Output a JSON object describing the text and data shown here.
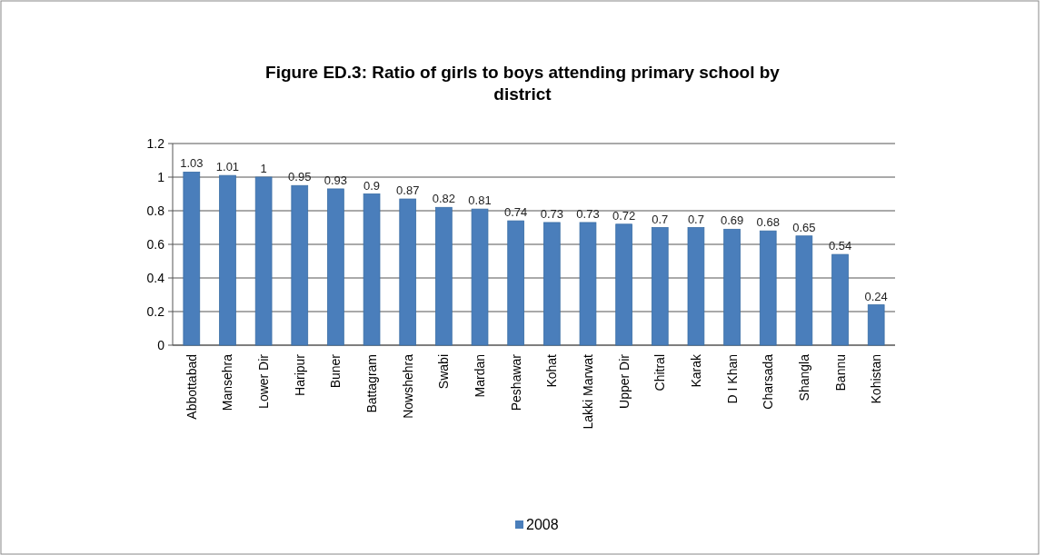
{
  "chart_data": {
    "type": "bar",
    "title": "Figure ED.3: Ratio of girls to boys attending primary school by district",
    "categories": [
      "Abbottabad",
      "Mansehra",
      "Lower Dir",
      "Haripur",
      "Buner",
      "Battagram",
      "Nowshehra",
      "Swabi",
      "Mardan",
      "Peshawar",
      "Kohat",
      "Lakki Marwat",
      "Upper Dir",
      "Chitral",
      "Karak",
      "D I Khan",
      "Charsada",
      "Shangla",
      "Bannu",
      "Kohistan"
    ],
    "series": [
      {
        "name": "2008",
        "color": "#4a7ebb",
        "values": [
          1.03,
          1.01,
          1,
          0.95,
          0.93,
          0.9,
          0.87,
          0.82,
          0.81,
          0.74,
          0.73,
          0.73,
          0.72,
          0.7,
          0.7,
          0.69,
          0.68,
          0.65,
          0.54,
          0.24
        ]
      }
    ],
    "ylim": [
      0,
      1.2
    ],
    "yticks": [
      0,
      0.2,
      0.4,
      0.6,
      0.8,
      1,
      1.2
    ],
    "grid": "y",
    "data_labels": true,
    "legend": "bottom"
  }
}
